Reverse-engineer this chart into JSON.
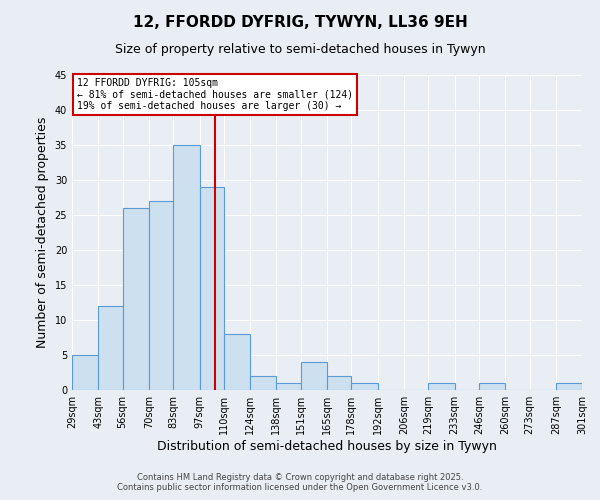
{
  "title": "12, FFORDD DYFRIG, TYWYN, LL36 9EH",
  "subtitle": "Size of property relative to semi-detached houses in Tywyn",
  "xlabel": "Distribution of semi-detached houses by size in Tywyn",
  "ylabel": "Number of semi-detached properties",
  "bin_edges": [
    29,
    43,
    56,
    70,
    83,
    97,
    110,
    124,
    138,
    151,
    165,
    178,
    192,
    206,
    219,
    233,
    246,
    260,
    273,
    287,
    301
  ],
  "bar_heights": [
    5,
    12,
    26,
    27,
    35,
    29,
    8,
    2,
    1,
    4,
    2,
    1,
    0,
    0,
    1,
    0,
    1,
    0,
    0,
    1
  ],
  "bar_color": "#cce0f0",
  "bar_edge_color": "#5b9bd5",
  "property_size": 105,
  "property_line_color": "#cc0000",
  "annotation_title": "12 FFORDD DYFRIG: 105sqm",
  "annotation_line1": "← 81% of semi-detached houses are smaller (124)",
  "annotation_line2": "19% of semi-detached houses are larger (30) →",
  "annotation_box_color": "#ffffff",
  "annotation_box_edge": "#cc0000",
  "ylim": [
    0,
    45
  ],
  "yticks": [
    0,
    5,
    10,
    15,
    20,
    25,
    30,
    35,
    40,
    45
  ],
  "tick_labels": [
    "29sqm",
    "43sqm",
    "56sqm",
    "70sqm",
    "83sqm",
    "97sqm",
    "110sqm",
    "124sqm",
    "138sqm",
    "151sqm",
    "165sqm",
    "178sqm",
    "192sqm",
    "206sqm",
    "219sqm",
    "233sqm",
    "246sqm",
    "260sqm",
    "273sqm",
    "287sqm",
    "301sqm"
  ],
  "footer1": "Contains HM Land Registry data © Crown copyright and database right 2025.",
  "footer2": "Contains public sector information licensed under the Open Government Licence v3.0.",
  "background_color": "#e8eef4",
  "grid_color": "#ffffff",
  "title_fontsize": 11,
  "subtitle_fontsize": 9,
  "axis_label_fontsize": 9,
  "tick_fontsize": 7,
  "footer_fontsize": 6
}
